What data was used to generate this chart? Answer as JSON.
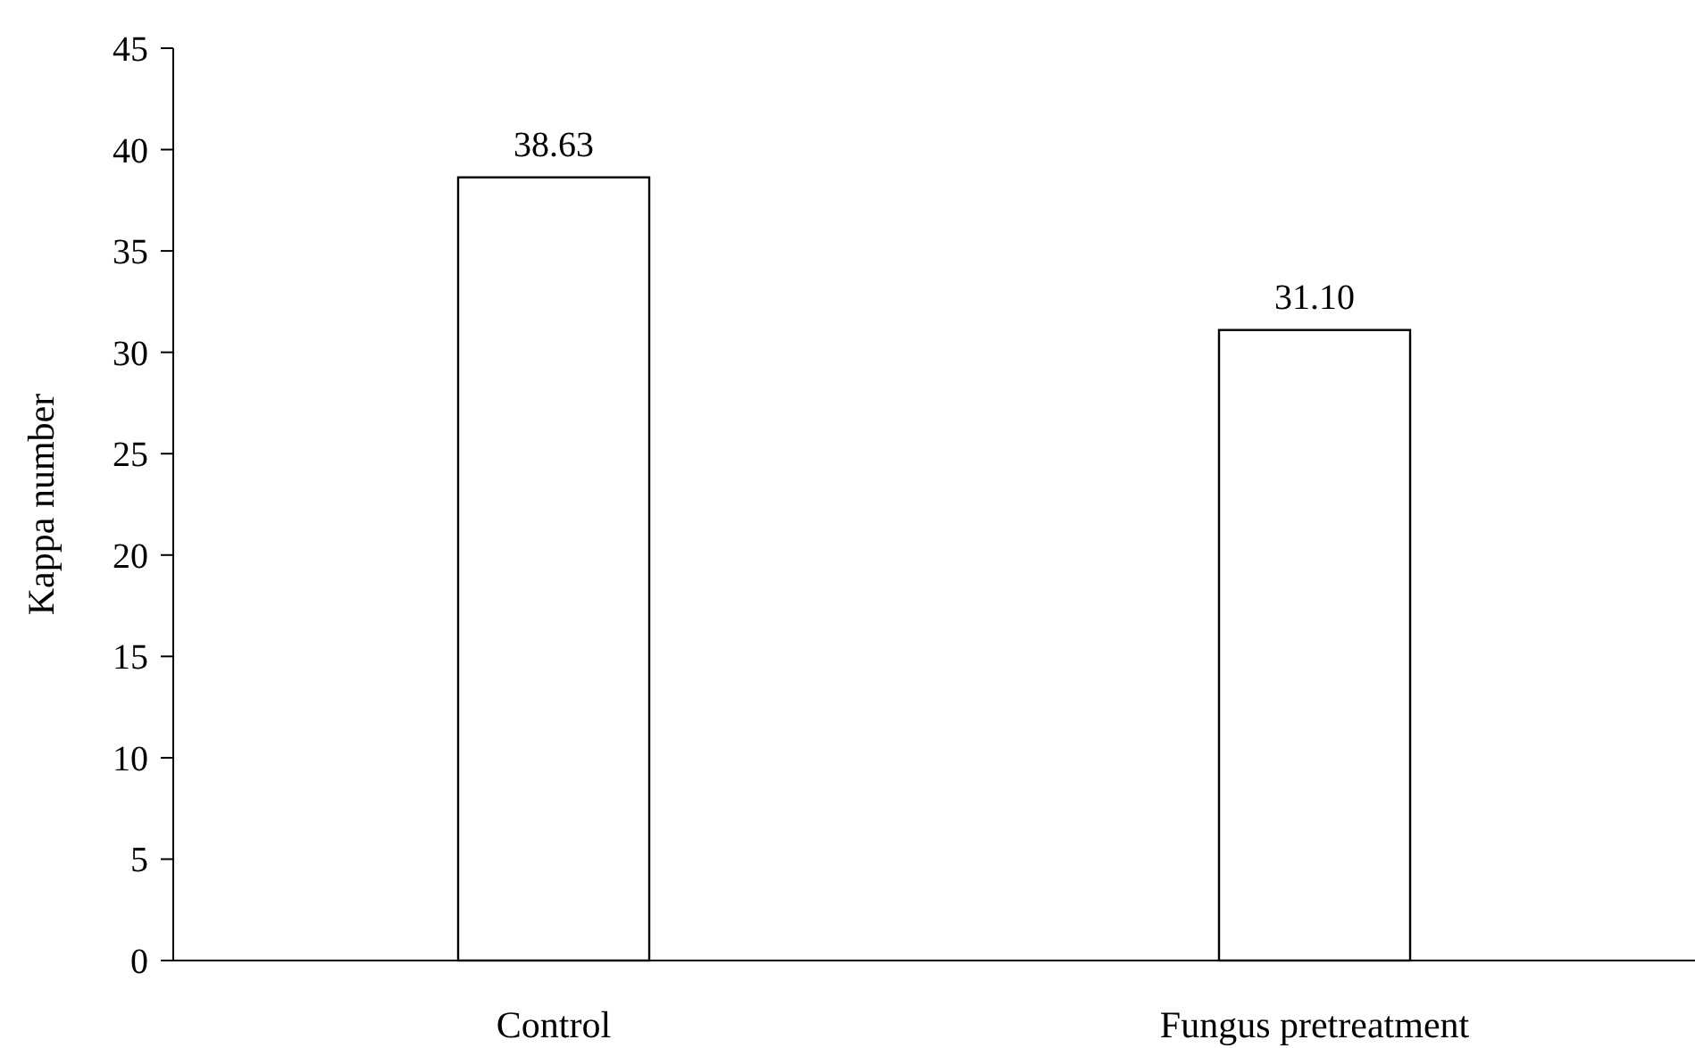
{
  "chart_data": {
    "type": "bar",
    "ylabel": "Kappa number",
    "categories": [
      "Control",
      "Fungus pretreatment"
    ],
    "values": [
      38.63,
      31.1
    ],
    "value_labels": [
      "38.63",
      "31.10"
    ],
    "color": "#ffffff",
    "ylim": [
      0,
      45
    ],
    "yticks": [
      0,
      5,
      10,
      15,
      20,
      25,
      30,
      35,
      40,
      45
    ],
    "grid": false
  }
}
